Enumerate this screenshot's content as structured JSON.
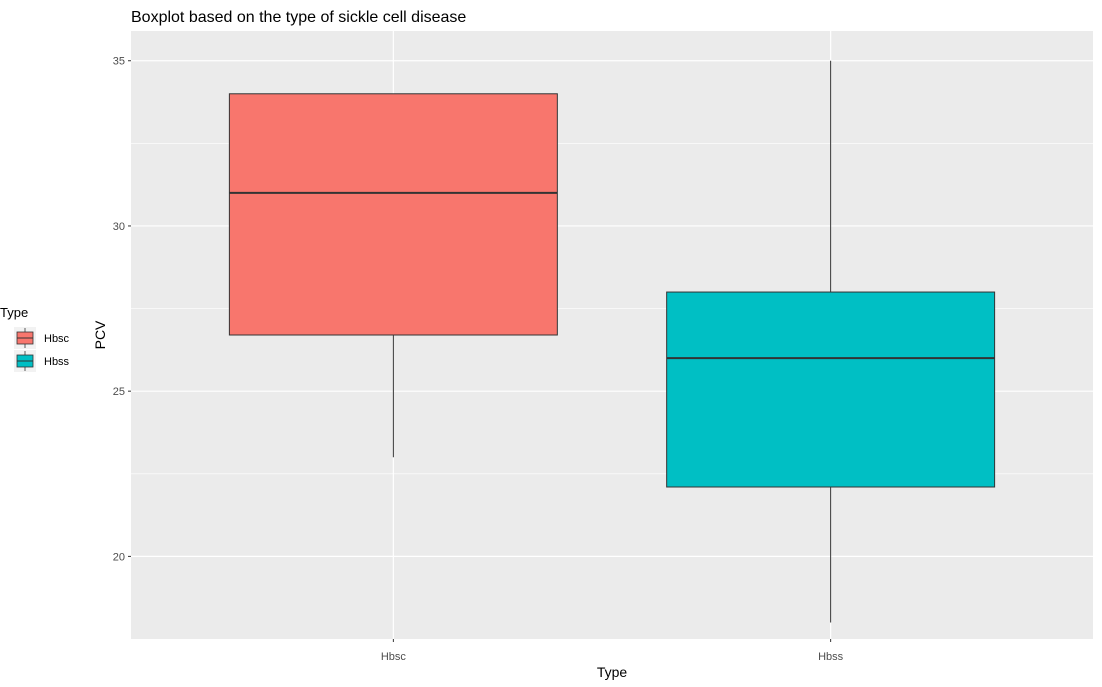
{
  "chart_data": {
    "type": "boxplot",
    "title": "Boxplot based on the type of sickle cell disease",
    "xlabel": "Type",
    "ylabel": "PCV",
    "ylim": [
      17.5,
      35.9
    ],
    "y_ticks": [
      20,
      25,
      30,
      35
    ],
    "grid": true,
    "legend": {
      "title": "Type",
      "position": "left",
      "entries": [
        "Hbsc",
        "Hbss"
      ]
    },
    "categories": [
      "Hbsc",
      "Hbss"
    ],
    "series": [
      {
        "name": "Hbsc",
        "color": "#f8766d",
        "min": 23.0,
        "q1": 26.7,
        "median": 31.0,
        "q3": 34.0,
        "max": 34.0
      },
      {
        "name": "Hbss",
        "color": "#00bfc4",
        "min": 18.0,
        "q1": 22.1,
        "median": 26.0,
        "q3": 28.0,
        "max": 35.0
      }
    ]
  }
}
